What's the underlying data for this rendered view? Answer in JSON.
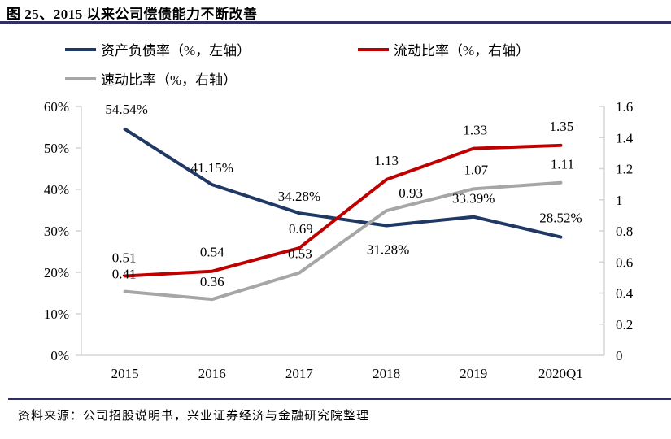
{
  "title": "图 25、2015 以来公司偿债能力不断改善",
  "source": "资料来源：公司招股说明书，兴业证券经济与金融研究院整理",
  "colors": {
    "rule": "#2F3166",
    "axis": "#D6D6D6",
    "navy": "#1F3864",
    "red": "#C00000",
    "gray": "#A6A6A6"
  },
  "chart_data": {
    "type": "line",
    "title": "2015 以来公司偿债能力不断改善",
    "categories": [
      "2015",
      "2016",
      "2017",
      "2018",
      "2019",
      "2020Q1"
    ],
    "series": [
      {
        "name": "资产负债率（%，左轴）",
        "axis": "left",
        "color": "#1F3864",
        "values": [
          54.54,
          41.15,
          34.28,
          31.28,
          33.39,
          28.52
        ],
        "labels": [
          "54.54%",
          "41.15%",
          "34.28%",
          "31.28%",
          "33.39%",
          "28.52%"
        ],
        "label_offsets": [
          [
            2,
            -19
          ],
          [
            0,
            -15
          ],
          [
            0,
            -15
          ],
          [
            2,
            35
          ],
          [
            0,
            -17
          ],
          [
            0,
            -18
          ]
        ]
      },
      {
        "name": "流动比率（%，右轴）",
        "axis": "right",
        "color": "#C00000",
        "values": [
          0.51,
          0.54,
          0.69,
          1.13,
          1.33,
          1.35
        ],
        "labels": [
          "0.51",
          "0.54",
          "0.69",
          "1.13",
          "1.33",
          "1.35"
        ],
        "label_offsets": [
          [
            -1,
            -17
          ],
          [
            0,
            -18
          ],
          [
            2,
            -18
          ],
          [
            0,
            -18
          ],
          [
            2,
            -17
          ],
          [
            1,
            -18
          ]
        ]
      },
      {
        "name": "速动比率（%，右轴）",
        "axis": "right",
        "color": "#A6A6A6",
        "values": [
          0.41,
          0.36,
          0.53,
          0.93,
          1.07,
          1.11
        ],
        "labels": [
          "0.41",
          "0.36",
          "0.53",
          "0.93",
          "1.07",
          "1.11"
        ],
        "label_offsets": [
          [
            -1,
            -16
          ],
          [
            0,
            -16
          ],
          [
            1,
            -18
          ],
          [
            30,
            -16
          ],
          [
            3,
            -18
          ],
          [
            2,
            -17
          ]
        ]
      }
    ],
    "left_axis": {
      "min": 0,
      "max": 60,
      "ticks": [
        "0%",
        "10%",
        "20%",
        "30%",
        "40%",
        "50%",
        "60%"
      ]
    },
    "right_axis": {
      "min": 0,
      "max": 1.6,
      "ticks": [
        "0",
        "0.2",
        "0.4",
        "0.6",
        "0.8",
        "1",
        "1.2",
        "1.4",
        "1.6"
      ]
    },
    "grid": false,
    "legend_position": "top"
  }
}
